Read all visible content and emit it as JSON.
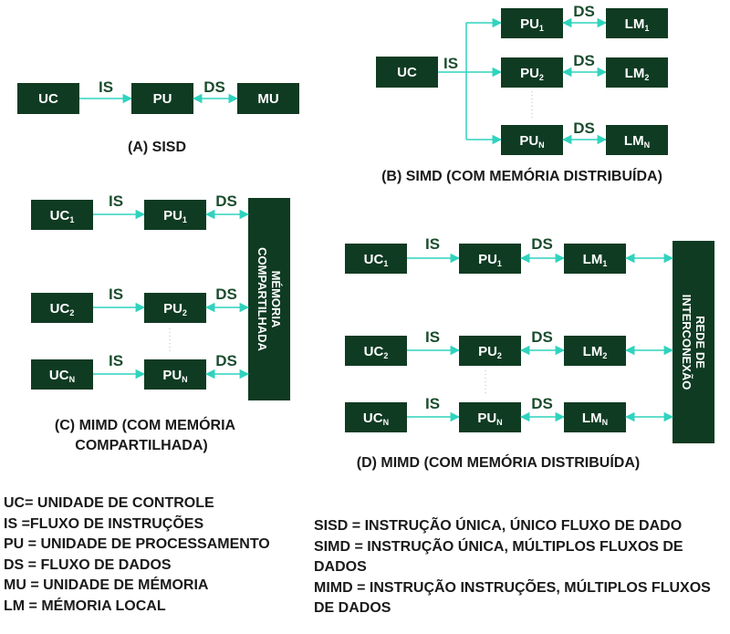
{
  "colors": {
    "box": "#0f3b22",
    "arrow": "#2fd3bd",
    "label": "#1b4d2e",
    "caption": "#1a1a1a"
  },
  "labels": {
    "is": "IS",
    "ds": "DS"
  },
  "sisd": {
    "uc": "UC",
    "pu": "PU",
    "mu": "MU",
    "caption": "(A) SISD"
  },
  "simd": {
    "uc": "UC",
    "pu": [
      {
        "base": "PU",
        "sub": "1"
      },
      {
        "base": "PU",
        "sub": "2"
      },
      {
        "base": "PU",
        "sub": "N"
      }
    ],
    "lm": [
      {
        "base": "LM",
        "sub": "1"
      },
      {
        "base": "LM",
        "sub": "2"
      },
      {
        "base": "LM",
        "sub": "N"
      }
    ],
    "caption": "(B) SIMD (COM MEMÓRIA DISTRIBUÍDA)"
  },
  "mimd_shared": {
    "uc": [
      {
        "base": "UC",
        "sub": "1"
      },
      {
        "base": "UC",
        "sub": "2"
      },
      {
        "base": "UC",
        "sub": "N"
      }
    ],
    "pu": [
      {
        "base": "PU",
        "sub": "1"
      },
      {
        "base": "PU",
        "sub": "2"
      },
      {
        "base": "PU",
        "sub": "N"
      }
    ],
    "memory": "MÉMORIA COMPARTILHADA",
    "caption_line1": "(C) MIMD (COM MEMÓRIA",
    "caption_line2": "COMPARTILHADA)"
  },
  "mimd_distributed": {
    "uc": [
      {
        "base": "UC",
        "sub": "1"
      },
      {
        "base": "UC",
        "sub": "2"
      },
      {
        "base": "UC",
        "sub": "N"
      }
    ],
    "pu": [
      {
        "base": "PU",
        "sub": "1"
      },
      {
        "base": "PU",
        "sub": "2"
      },
      {
        "base": "PU",
        "sub": "N"
      }
    ],
    "lm": [
      {
        "base": "LM",
        "sub": "1"
      },
      {
        "base": "LM",
        "sub": "2"
      },
      {
        "base": "LM",
        "sub": "N"
      }
    ],
    "network": "REDE DE INTERCONEXÃO",
    "caption": "(D) MIMD (COM MEMÓRIA DISTRIBUÍDA)"
  },
  "legend_left": [
    "UC= UNIDADE DE CONTROLE",
    "IS =FLUXO DE INSTRUÇÕES",
    "PU = UNIDADE DE PROCESSAMENTO",
    "DS = FLUXO DE DADOS",
    "MU = UNIDADE DE MÉMORIA",
    "LM = MÉMORIA LOCAL"
  ],
  "legend_right": [
    "SISD = INSTRUÇÃO ÚNICA, ÚNICO FLUXO DE DADO",
    "SIMD = INSTRUÇÃO ÚNICA, MÚLTIPLOS FLUXOS DE DADOS",
    "MIMD = INSTRUÇÃO INSTRUÇÕES, MÚLTIPLOS FLUXOS DE DADOS"
  ]
}
